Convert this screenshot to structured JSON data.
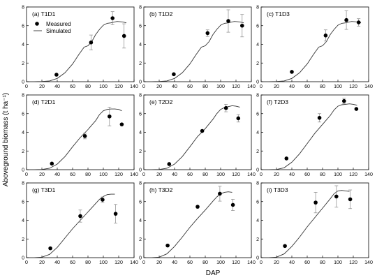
{
  "figure": {
    "xlabel": "DAP",
    "ylabel": "Aboveground biomass (t ha⁻¹)"
  },
  "legend": {
    "measured": "Measured",
    "simulated": "Simulated"
  },
  "colors": {
    "axis": "#000000",
    "line": "#333333",
    "marker": "#000000",
    "errorbar": "#888888"
  },
  "chart_data": [
    {
      "type": "scatter",
      "title": "(a) T1D1",
      "xlim": [
        0,
        140
      ],
      "ylim": [
        0,
        8
      ],
      "xticks": [
        0,
        20,
        40,
        60,
        80,
        100,
        120,
        140
      ],
      "yticks": [
        0,
        2,
        4,
        6,
        8
      ],
      "measured": [
        {
          "x": 39,
          "y": 0.75,
          "err": 0
        },
        {
          "x": 84,
          "y": 4.2,
          "err": 0.8
        },
        {
          "x": 112,
          "y": 6.8,
          "err": 0.7
        },
        {
          "x": 127,
          "y": 4.9,
          "err": 1.3
        }
      ],
      "simulated": [
        [
          10,
          0
        ],
        [
          20,
          0.02
        ],
        [
          30,
          0.08
        ],
        [
          40,
          0.35
        ],
        [
          50,
          0.95
        ],
        [
          60,
          1.9
        ],
        [
          68,
          2.9
        ],
        [
          75,
          3.7
        ],
        [
          80,
          3.85
        ],
        [
          85,
          4.3
        ],
        [
          90,
          5.05
        ],
        [
          95,
          5.6
        ],
        [
          100,
          6.05
        ],
        [
          105,
          6.25
        ],
        [
          110,
          6.3
        ],
        [
          118,
          6.45
        ],
        [
          125,
          6.4
        ],
        [
          130,
          6.3
        ]
      ]
    },
    {
      "type": "scatter",
      "title": "(b) T1D2",
      "xlim": [
        0,
        140
      ],
      "ylim": [
        0,
        8
      ],
      "xticks": [
        0,
        20,
        40,
        60,
        80,
        100,
        120,
        140
      ],
      "yticks": [
        0,
        2,
        4,
        6,
        8
      ],
      "measured": [
        {
          "x": 39,
          "y": 0.8,
          "err": 0
        },
        {
          "x": 83,
          "y": 5.2,
          "err": 0.35
        },
        {
          "x": 110,
          "y": 6.5,
          "err": 1.2
        },
        {
          "x": 128,
          "y": 6.0,
          "err": 1.2
        }
      ],
      "simulated": [
        [
          10,
          0
        ],
        [
          20,
          0.02
        ],
        [
          30,
          0.08
        ],
        [
          40,
          0.35
        ],
        [
          50,
          0.95
        ],
        [
          60,
          1.9
        ],
        [
          68,
          2.9
        ],
        [
          75,
          3.7
        ],
        [
          80,
          3.85
        ],
        [
          85,
          4.3
        ],
        [
          90,
          5.05
        ],
        [
          95,
          5.6
        ],
        [
          100,
          6.05
        ],
        [
          105,
          6.25
        ],
        [
          110,
          6.3
        ],
        [
          118,
          6.45
        ],
        [
          125,
          6.4
        ],
        [
          130,
          6.3
        ]
      ]
    },
    {
      "type": "scatter",
      "title": "(c) T1D3",
      "xlim": [
        0,
        140
      ],
      "ylim": [
        0,
        8
      ],
      "xticks": [
        0,
        20,
        40,
        60,
        80,
        100,
        120,
        140
      ],
      "yticks": [
        0,
        2,
        4,
        6,
        8
      ],
      "measured": [
        {
          "x": 40,
          "y": 1.05,
          "err": 0
        },
        {
          "x": 84,
          "y": 4.95,
          "err": 0.6
        },
        {
          "x": 111,
          "y": 6.6,
          "err": 1.0
        },
        {
          "x": 127,
          "y": 6.35,
          "err": 0.4
        }
      ],
      "simulated": [
        [
          10,
          0
        ],
        [
          20,
          0.02
        ],
        [
          30,
          0.08
        ],
        [
          40,
          0.35
        ],
        [
          50,
          0.95
        ],
        [
          60,
          1.9
        ],
        [
          68,
          2.9
        ],
        [
          75,
          3.7
        ],
        [
          80,
          3.85
        ],
        [
          85,
          4.3
        ],
        [
          90,
          5.05
        ],
        [
          95,
          5.6
        ],
        [
          100,
          6.05
        ],
        [
          105,
          6.25
        ],
        [
          110,
          6.3
        ],
        [
          118,
          6.45
        ],
        [
          125,
          6.4
        ],
        [
          130,
          6.3
        ]
      ]
    },
    {
      "type": "scatter",
      "title": "(d) T2D1",
      "xlim": [
        0,
        140
      ],
      "ylim": [
        0,
        8
      ],
      "xticks": [
        0,
        20,
        40,
        60,
        80,
        100,
        120,
        140
      ],
      "yticks": [
        0,
        2,
        4,
        6,
        8
      ],
      "measured": [
        {
          "x": 33,
          "y": 0.65,
          "err": 0
        },
        {
          "x": 76,
          "y": 3.6,
          "err": 0.3
        },
        {
          "x": 108,
          "y": 5.7,
          "err": 1.0
        },
        {
          "x": 124,
          "y": 4.85,
          "err": 0
        }
      ],
      "simulated": [
        [
          10,
          0
        ],
        [
          20,
          0.02
        ],
        [
          30,
          0.15
        ],
        [
          40,
          0.6
        ],
        [
          50,
          1.4
        ],
        [
          60,
          2.45
        ],
        [
          70,
          3.45
        ],
        [
          80,
          4.3
        ],
        [
          90,
          5.25
        ],
        [
          95,
          5.9
        ],
        [
          100,
          6.3
        ],
        [
          105,
          6.45
        ],
        [
          110,
          6.5
        ],
        [
          115,
          6.5
        ],
        [
          120,
          6.45
        ],
        [
          124,
          6.3
        ]
      ]
    },
    {
      "type": "scatter",
      "title": "(e) T2D2",
      "xlim": [
        0,
        140
      ],
      "ylim": [
        0,
        8
      ],
      "xticks": [
        0,
        20,
        40,
        60,
        80,
        100,
        120,
        140
      ],
      "yticks": [
        0,
        2,
        4,
        6,
        8
      ],
      "measured": [
        {
          "x": 33,
          "y": 0.6,
          "err": 0
        },
        {
          "x": 76,
          "y": 4.15,
          "err": 0
        },
        {
          "x": 107,
          "y": 6.6,
          "err": 0.4
        },
        {
          "x": 123,
          "y": 5.5,
          "err": 0.4
        }
      ],
      "simulated": [
        [
          10,
          0
        ],
        [
          20,
          0.02
        ],
        [
          30,
          0.15
        ],
        [
          40,
          0.6
        ],
        [
          50,
          1.4
        ],
        [
          60,
          2.45
        ],
        [
          70,
          3.55
        ],
        [
          80,
          4.4
        ],
        [
          90,
          5.4
        ],
        [
          95,
          6.0
        ],
        [
          100,
          6.45
        ],
        [
          105,
          6.65
        ],
        [
          110,
          6.75
        ],
        [
          115,
          6.85
        ],
        [
          120,
          6.8
        ],
        [
          125,
          6.7
        ]
      ]
    },
    {
      "type": "scatter",
      "title": "(f) T2D3",
      "xlim": [
        0,
        140
      ],
      "ylim": [
        0,
        8
      ],
      "xticks": [
        0,
        20,
        40,
        60,
        80,
        100,
        120,
        140
      ],
      "yticks": [
        0,
        2,
        4,
        6,
        8
      ],
      "measured": [
        {
          "x": 33,
          "y": 1.2,
          "err": 0
        },
        {
          "x": 76,
          "y": 5.55,
          "err": 0.45
        },
        {
          "x": 108,
          "y": 7.35,
          "err": 0.3
        },
        {
          "x": 124,
          "y": 6.5,
          "err": 0
        }
      ],
      "simulated": [
        [
          10,
          0
        ],
        [
          20,
          0.02
        ],
        [
          30,
          0.2
        ],
        [
          40,
          0.8
        ],
        [
          50,
          1.7
        ],
        [
          60,
          2.8
        ],
        [
          70,
          3.9
        ],
        [
          80,
          4.85
        ],
        [
          90,
          5.8
        ],
        [
          95,
          6.4
        ],
        [
          100,
          6.8
        ],
        [
          105,
          6.95
        ],
        [
          110,
          7.0
        ],
        [
          115,
          7.05
        ],
        [
          120,
          7.0
        ],
        [
          125,
          6.9
        ]
      ]
    },
    {
      "type": "scatter",
      "title": "(g) T3D1",
      "xlim": [
        0,
        140
      ],
      "ylim": [
        0,
        8
      ],
      "xticks": [
        0,
        20,
        40,
        60,
        80,
        100,
        120,
        140
      ],
      "yticks": [
        0,
        2,
        4,
        6,
        8
      ],
      "measured": [
        {
          "x": 31,
          "y": 1.0,
          "err": 0
        },
        {
          "x": 70,
          "y": 4.45,
          "err": 0.65
        },
        {
          "x": 99,
          "y": 6.2,
          "err": 0.3
        },
        {
          "x": 116,
          "y": 4.7,
          "err": 1.0
        }
      ],
      "simulated": [
        [
          10,
          0
        ],
        [
          20,
          0.05
        ],
        [
          30,
          0.35
        ],
        [
          40,
          1.1
        ],
        [
          50,
          2.1
        ],
        [
          60,
          3.1
        ],
        [
          70,
          4.0
        ],
        [
          80,
          4.9
        ],
        [
          90,
          5.8
        ],
        [
          95,
          6.25
        ],
        [
          100,
          6.55
        ],
        [
          105,
          6.75
        ],
        [
          110,
          6.8
        ],
        [
          115,
          6.8
        ]
      ]
    },
    {
      "type": "scatter",
      "title": "(h) T3D2",
      "xlim": [
        0,
        140
      ],
      "ylim": [
        0,
        8
      ],
      "xticks": [
        0,
        20,
        40,
        60,
        80,
        100,
        120,
        140
      ],
      "yticks": [
        0,
        2,
        4,
        6,
        8
      ],
      "measured": [
        {
          "x": 31,
          "y": 1.3,
          "err": 0
        },
        {
          "x": 70,
          "y": 5.45,
          "err": 0
        },
        {
          "x": 99,
          "y": 6.85,
          "err": 0.8
        },
        {
          "x": 116,
          "y": 5.65,
          "err": 0.6
        }
      ],
      "simulated": [
        [
          10,
          0
        ],
        [
          20,
          0.05
        ],
        [
          30,
          0.4
        ],
        [
          40,
          1.2
        ],
        [
          50,
          2.2
        ],
        [
          60,
          3.25
        ],
        [
          70,
          4.2
        ],
        [
          80,
          5.1
        ],
        [
          90,
          6.05
        ],
        [
          95,
          6.5
        ],
        [
          100,
          6.85
        ],
        [
          105,
          7.0
        ],
        [
          110,
          7.05
        ],
        [
          115,
          7.0
        ]
      ]
    },
    {
      "type": "scatter",
      "title": "(i) T3D3",
      "xlim": [
        0,
        140
      ],
      "ylim": [
        0,
        8
      ],
      "xticks": [
        0,
        20,
        40,
        60,
        80,
        100,
        120,
        140
      ],
      "yticks": [
        0,
        2,
        4,
        6,
        8
      ],
      "measured": [
        {
          "x": 31,
          "y": 1.25,
          "err": 0
        },
        {
          "x": 71,
          "y": 5.9,
          "err": 1.1
        },
        {
          "x": 98,
          "y": 6.55,
          "err": 1.15
        },
        {
          "x": 116,
          "y": 6.25,
          "err": 1.0
        }
      ],
      "simulated": [
        [
          10,
          0
        ],
        [
          20,
          0.05
        ],
        [
          30,
          0.4
        ],
        [
          40,
          1.2
        ],
        [
          50,
          2.2
        ],
        [
          60,
          3.3
        ],
        [
          70,
          4.3
        ],
        [
          80,
          5.3
        ],
        [
          90,
          6.3
        ],
        [
          95,
          6.85
        ],
        [
          100,
          7.15
        ],
        [
          105,
          7.2
        ],
        [
          110,
          7.15
        ],
        [
          115,
          7.1
        ]
      ]
    }
  ]
}
